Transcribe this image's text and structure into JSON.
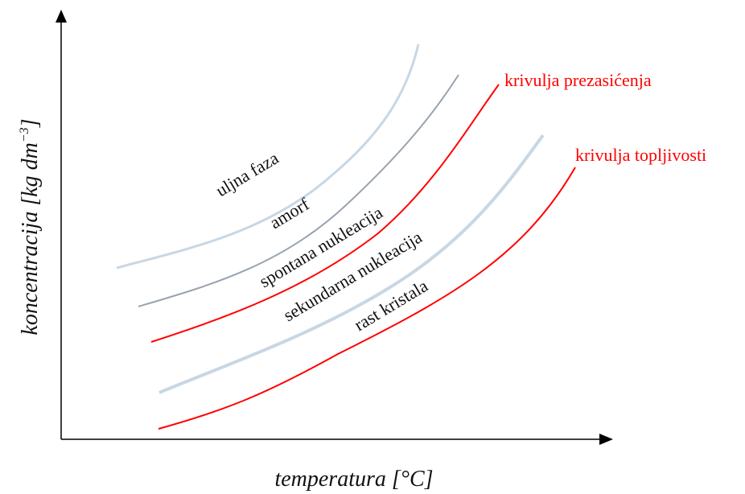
{
  "axes": {
    "x_title": "temperatura [°C]",
    "y_title_main": "koncentracija [kg dm",
    "y_title_sup": "−3",
    "y_title_close": "]"
  },
  "curves": {
    "prezasicenja": {
      "label": "krivulja prezasićenja",
      "color": "#ff0000"
    },
    "topljivosti": {
      "label": "krivulja topljivosti",
      "color": "#ff0000"
    },
    "uljna_faza": {
      "color": "#c8d7e4"
    },
    "amorf": {
      "color": "#98a3b0"
    },
    "sekundarna": {
      "color": "#c8d7e4"
    }
  },
  "regions": {
    "uljna_faza": "uljna faza",
    "amorf": "amorf",
    "spontana": "spontana nukleacija",
    "sekundarna": "sekundarna nukleacija",
    "rast": "rast kristala"
  },
  "colors": {
    "axis": "#000000",
    "label_red": "#ff0000",
    "text": "#111111"
  }
}
